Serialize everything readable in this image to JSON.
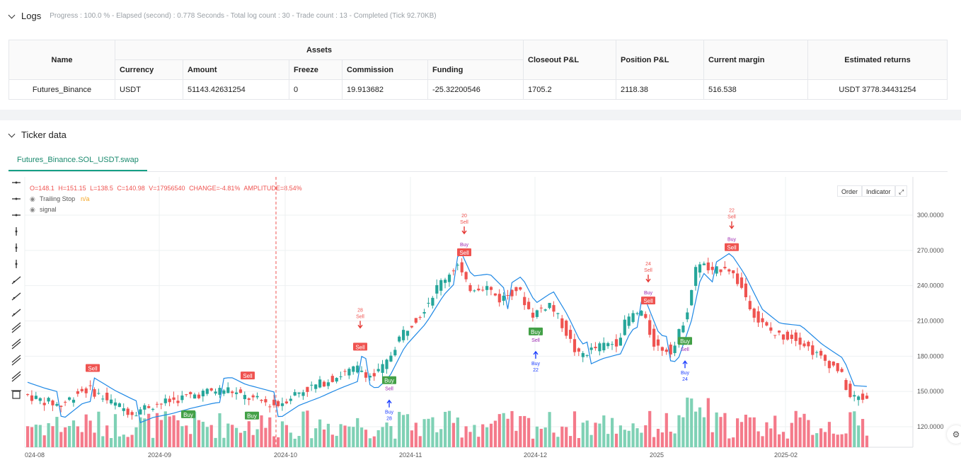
{
  "logs": {
    "title": "Logs",
    "summary": "Progress : 100.0 % - Elapsed (second) : 0.778  Seconds - Total log count : 30 - Trade count : 13 - Completed (Tick 92.70KB)",
    "table": {
      "headers": {
        "name": "Name",
        "assets": "Assets",
        "closeout": "Closeout P&L",
        "position": "Position P&L",
        "margin": "Current margin",
        "returns": "Estimated returns"
      },
      "subheaders": [
        "Currency",
        "Amount",
        "Freeze",
        "Commission",
        "Funding"
      ],
      "row": {
        "name": "Futures_Binance",
        "currency": "USDT",
        "amount": "51143.42631254",
        "freeze": "0",
        "commission": "19.913682",
        "funding": "-25.32200546",
        "closeout": "1705.2",
        "position": "2118.38",
        "margin": "516.538",
        "returns": "USDT 3778.34431254"
      }
    }
  },
  "ticker": {
    "title": "Ticker data",
    "tab": "Futures_Binance.SOL_USDT.swap",
    "ohlc": {
      "o": "O=148.1",
      "h": "H=151.15",
      "l": "L=138.5",
      "c": "C=140.98",
      "v": "V=17956540",
      "change": "CHANGE=-4.81%",
      "amplitude": "AMPLITUDE=8.54%"
    },
    "indicators": [
      {
        "name": "Trailing Stop",
        "value": "n/a"
      },
      {
        "name": "signal",
        "value": ""
      }
    ],
    "buttons": {
      "order": "Order",
      "indicator": "Indicator"
    }
  },
  "chart_data": {
    "type": "candlestick",
    "y_axis": {
      "ticks": [
        "300.0000",
        "270.0000",
        "240.0000",
        "210.0000",
        "180.0000",
        "150.0000",
        "120.0000"
      ],
      "range": [
        110,
        312
      ]
    },
    "x_axis": {
      "ticks": [
        "024-08",
        "2024-09",
        "2024-10",
        "2024-11",
        "2024-12",
        "2025",
        "2025-02"
      ]
    },
    "colors": {
      "up": "#26a69a",
      "down": "#ef5350",
      "volume_up": "#7fd1b5",
      "volume_down": "#f47a8a",
      "trailing_stop": "#1e88e5",
      "buy_label": "#43a047",
      "sell_label": "#ef5350"
    },
    "signals": [
      {
        "type": "sell",
        "x": 131,
        "text": "Sell"
      },
      {
        "type": "buy",
        "x": 266,
        "text": "Buy"
      },
      {
        "type": "sell",
        "x": 350,
        "text": "Sell"
      },
      {
        "type": "buy",
        "x": 356,
        "text": "Buy"
      },
      {
        "type": "sell",
        "x": 509,
        "text": "Sell",
        "top_text": "28",
        "top_text2": "Sell"
      },
      {
        "type": "buy",
        "x": 550,
        "text": "Buy",
        "sub": "Sell",
        "bottom_text": "Buy",
        "bottom_text2": "28"
      },
      {
        "type": "sell",
        "x": 656,
        "text": "Sell",
        "top_text": "20",
        "top_text2": "Sell",
        "above": "Buy"
      },
      {
        "type": "buy",
        "x": 757,
        "text": "Buy",
        "sub": "Sell",
        "bottom_text": "Buy",
        "bottom_text2": "22"
      },
      {
        "type": "sell",
        "x": 916,
        "text": "Sell",
        "top_text": "24",
        "top_text2": "Sell",
        "above": "Buy"
      },
      {
        "type": "buy",
        "x": 968,
        "text": "Buy",
        "sub": "Sell",
        "bottom_text": "Buy",
        "bottom_text2": "24"
      },
      {
        "type": "sell",
        "x": 1034,
        "text": "Sell",
        "top_text": "22",
        "top_text2": "Sell",
        "above": "Buy"
      }
    ]
  }
}
